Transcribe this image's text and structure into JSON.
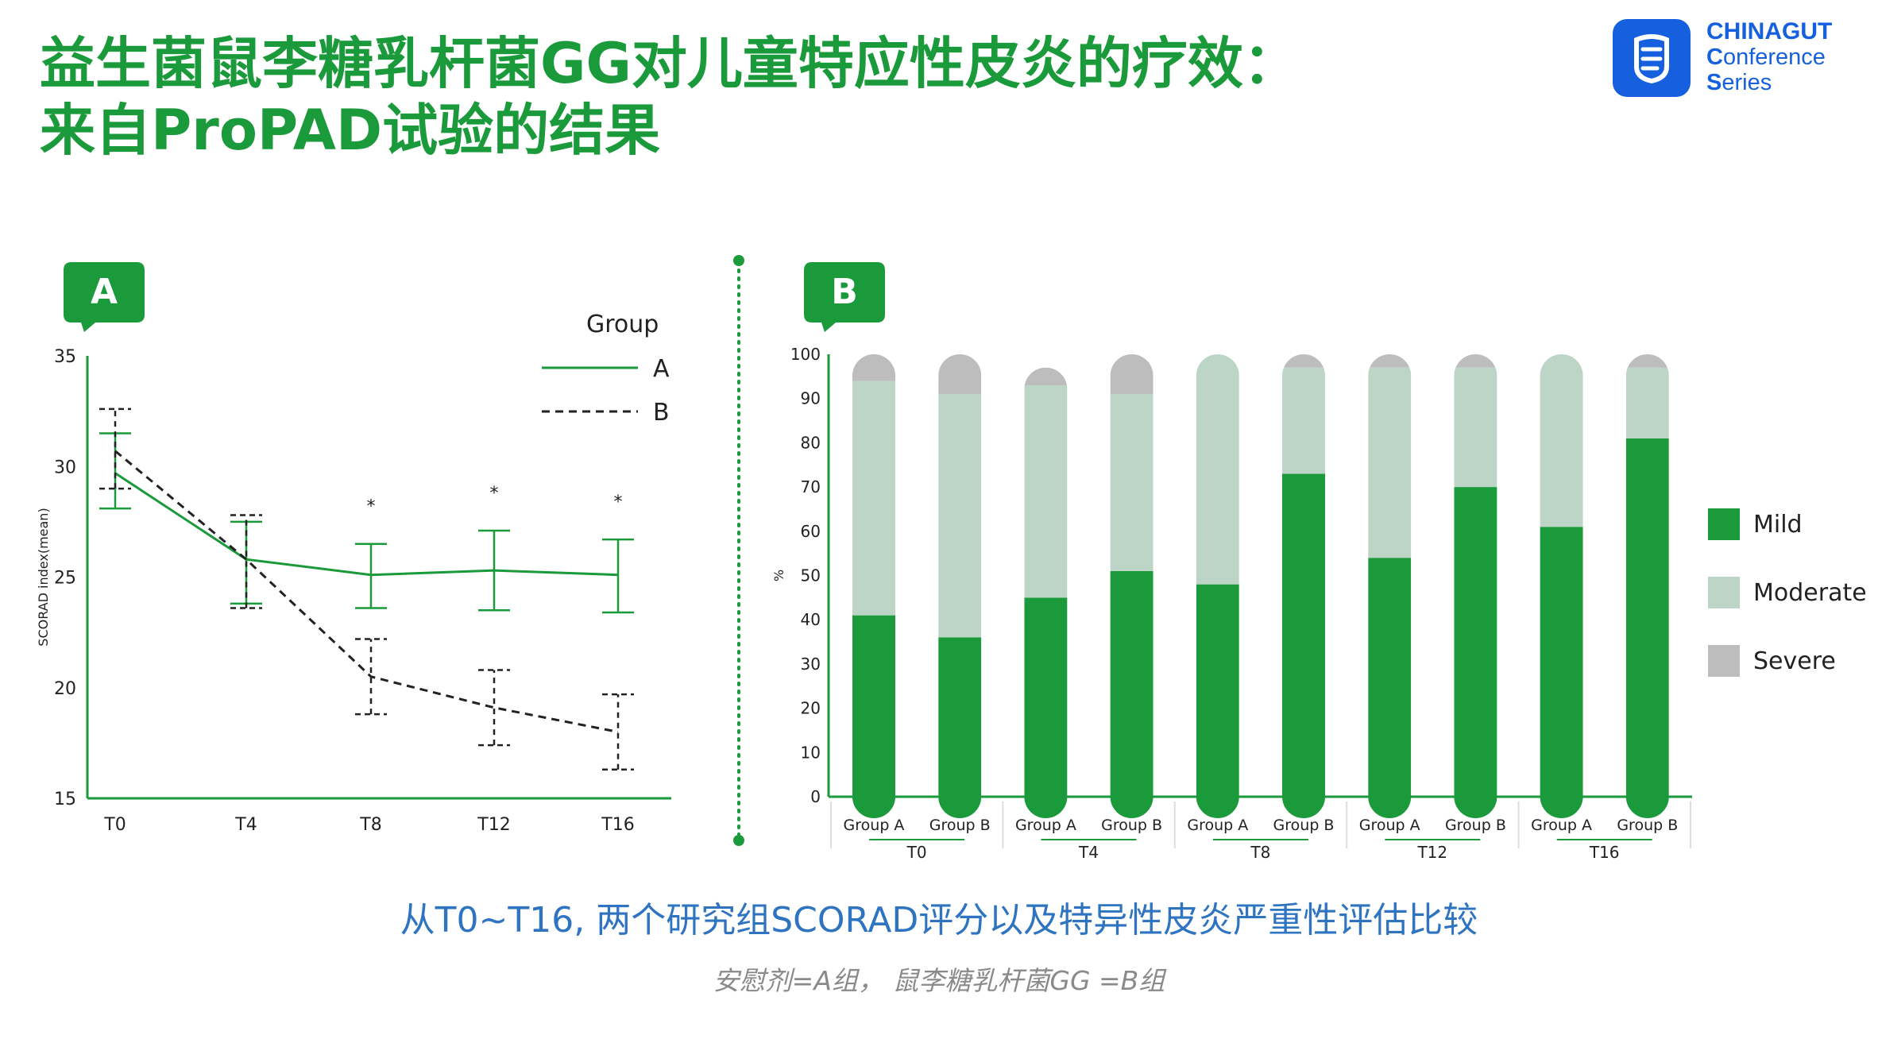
{
  "slide": {
    "title_line1": "益生菌鼠李糖乳杆菌GG对儿童特应性皮炎的疗效：",
    "title_line2": "来自ProPAD试验的结果",
    "caption": "从T0~T16, 两个研究组SCORAD评分以及特异性皮炎严重性评估比较",
    "note": "安慰剂=A组，  鼠李糖乳杆菌GG =B组"
  },
  "logo": {
    "line1": "CHINAGUT",
    "line2_initial": "C",
    "line2_rest": "onference",
    "line3_initial": "S",
    "line3_rest": "eries"
  },
  "colors": {
    "green": "#1a9a3a",
    "title_green": "#1a9a3a",
    "moderate": "#bcd5c6",
    "severe": "#bdbdbd",
    "caption_blue": "#2f74c0",
    "logo_blue": "#1660e0"
  },
  "chart_data": [
    {
      "type": "line",
      "panel_label": "A",
      "ylabel": "SCORAD index(mean)",
      "xlabel": "",
      "ylim": [
        15,
        35
      ],
      "yticks": [
        35,
        30,
        25,
        20,
        15
      ],
      "categories": [
        "T0",
        "T4",
        "T8",
        "T12",
        "T16"
      ],
      "legend_title": "Group",
      "legend_position": "top-right",
      "significance": [
        "",
        "",
        "*",
        "*",
        "*"
      ],
      "series": [
        {
          "name": "A",
          "style": "solid",
          "values": [
            29.7,
            25.8,
            25.1,
            25.3,
            25.1
          ],
          "error_low": [
            28.1,
            23.8,
            23.6,
            23.5,
            23.4
          ],
          "error_high": [
            31.5,
            27.5,
            26.5,
            27.1,
            26.7
          ]
        },
        {
          "name": "B",
          "style": "dashed",
          "values": [
            30.7,
            25.8,
            20.5,
            19.1,
            18.0
          ],
          "error_low": [
            29.0,
            23.6,
            18.8,
            17.4,
            16.3
          ],
          "error_high": [
            32.6,
            27.8,
            22.2,
            20.8,
            19.7
          ]
        }
      ]
    },
    {
      "type": "bar",
      "stacked": true,
      "panel_label": "B",
      "ylabel": "%",
      "ylim": [
        0,
        100
      ],
      "yticks": [
        0,
        10,
        20,
        30,
        40,
        50,
        60,
        70,
        80,
        90,
        100
      ],
      "timepoints": [
        "T0",
        "T4",
        "T8",
        "T12",
        "T16"
      ],
      "groups": [
        "Group A",
        "Group B"
      ],
      "legend_position": "right",
      "series": [
        {
          "name": "Mild",
          "color": "#1a9a3a",
          "values": [
            41,
            36,
            45,
            51,
            48,
            73,
            54,
            70,
            61,
            81
          ]
        },
        {
          "name": "Moderate",
          "color": "#bcd5c6",
          "values": [
            53,
            55,
            48,
            40,
            52,
            24,
            43,
            27,
            39,
            16
          ]
        },
        {
          "name": "Severe",
          "color": "#bdbdbd",
          "values": [
            6,
            9,
            4,
            9,
            0,
            3,
            3,
            3,
            0,
            3
          ]
        }
      ]
    }
  ]
}
